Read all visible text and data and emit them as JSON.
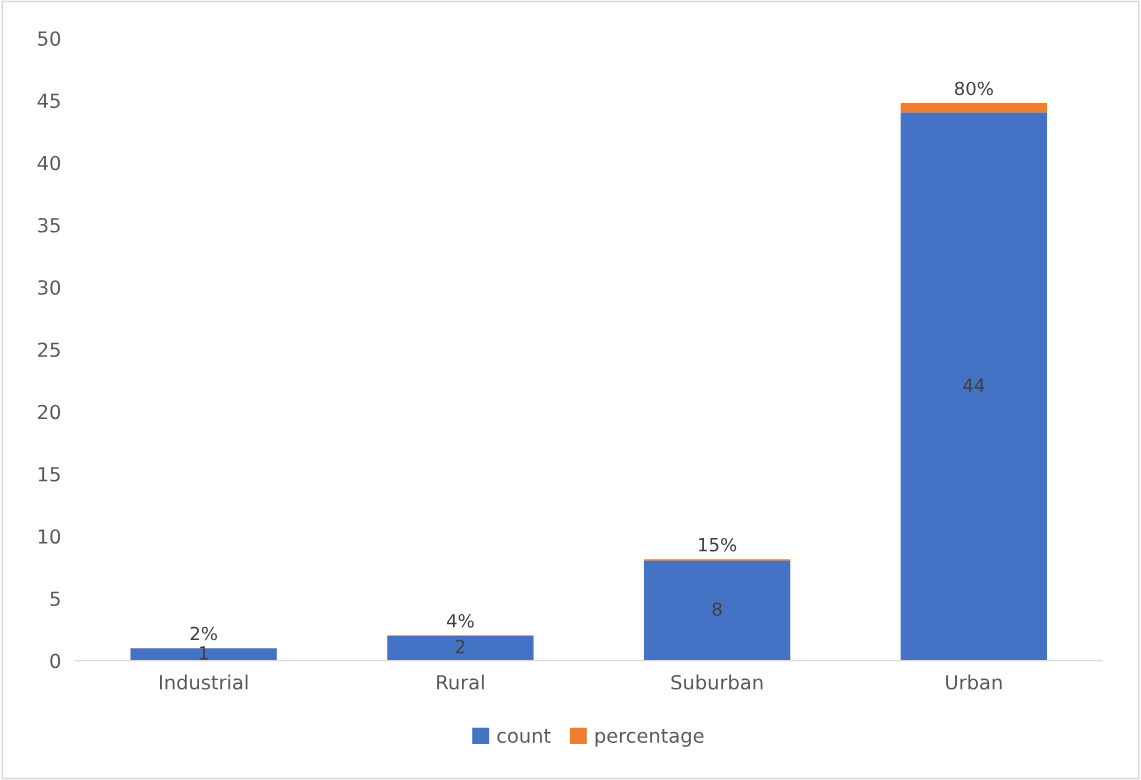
{
  "chart_data": {
    "type": "bar",
    "stacked": true,
    "categories": [
      "Industrial",
      "Rural",
      "Suburban",
      "Urban"
    ],
    "series": [
      {
        "name": "count",
        "color": "#4472c4",
        "values": [
          1,
          2,
          8,
          44
        ],
        "value_labels": [
          "1",
          "2",
          "8",
          "44"
        ]
      },
      {
        "name": "percentage",
        "color": "#ed7d31",
        "values": [
          0.02,
          0.04,
          0.15,
          0.8
        ],
        "value_labels": [
          "2%",
          "4%",
          "15%",
          "80%"
        ]
      }
    ],
    "ylim": [
      0,
      50
    ],
    "yticks": [
      0,
      5,
      10,
      15,
      20,
      25,
      30,
      35,
      40,
      45,
      50
    ],
    "grid": false,
    "legend": "bottom"
  }
}
